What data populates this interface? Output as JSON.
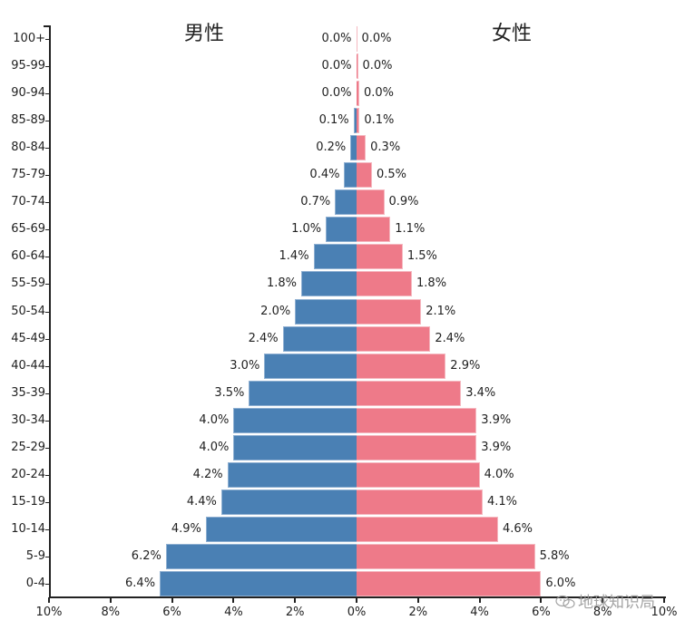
{
  "chart_data": {
    "type": "bar",
    "subtype": "population-pyramid",
    "orientation": "horizontal",
    "categories": [
      "100+",
      "95-99",
      "90-94",
      "85-89",
      "80-84",
      "75-79",
      "70-74",
      "65-69",
      "60-64",
      "55-59",
      "50-54",
      "45-49",
      "40-44",
      "35-39",
      "30-34",
      "25-29",
      "20-24",
      "15-19",
      "10-14",
      "5-9",
      "0-4"
    ],
    "series": [
      {
        "name": "男性",
        "side": "left",
        "color": "#4a80b4",
        "values": [
          0.0,
          0.0,
          0.0,
          0.1,
          0.2,
          0.4,
          0.7,
          1.0,
          1.4,
          1.8,
          2.0,
          2.4,
          3.0,
          3.5,
          4.0,
          4.0,
          4.2,
          4.4,
          4.9,
          6.2,
          6.4
        ],
        "labels": [
          "0.0%",
          "0.0%",
          "0.0%",
          "0.1%",
          "0.2%",
          "0.4%",
          "0.7%",
          "1.0%",
          "1.4%",
          "1.8%",
          "2.0%",
          "2.4%",
          "3.0%",
          "3.5%",
          "4.0%",
          "4.0%",
          "4.2%",
          "4.4%",
          "4.9%",
          "6.2%",
          "6.4%"
        ]
      },
      {
        "name": "女性",
        "side": "right",
        "color": "#ee7a89",
        "values": [
          0.0,
          0.0,
          0.0,
          0.1,
          0.3,
          0.5,
          0.9,
          1.1,
          1.5,
          1.8,
          2.1,
          2.4,
          2.9,
          3.4,
          3.9,
          3.9,
          4.0,
          4.1,
          4.6,
          5.8,
          6.0
        ],
        "labels": [
          "0.0%",
          "0.0%",
          "0.0%",
          "0.1%",
          "0.3%",
          "0.5%",
          "0.9%",
          "1.1%",
          "1.5%",
          "1.8%",
          "2.1%",
          "2.4%",
          "2.9%",
          "3.4%",
          "3.9%",
          "3.9%",
          "4.0%",
          "4.1%",
          "4.6%",
          "5.8%",
          "6.0%"
        ]
      }
    ],
    "title_left": "男性",
    "title_right": "女性",
    "xlabel": "",
    "ylabel": "",
    "x_ticks_left": [
      "10%",
      "8%",
      "6%",
      "4%",
      "2%",
      "0%"
    ],
    "x_ticks_right": [
      "0%",
      "2%",
      "4%",
      "6%",
      "8%",
      "10%"
    ],
    "xlim": [
      -10,
      10
    ],
    "grid": false,
    "legend": "none (side titles)"
  },
  "watermark": {
    "text": "地球知识局",
    "icon": "wechat-icon"
  }
}
